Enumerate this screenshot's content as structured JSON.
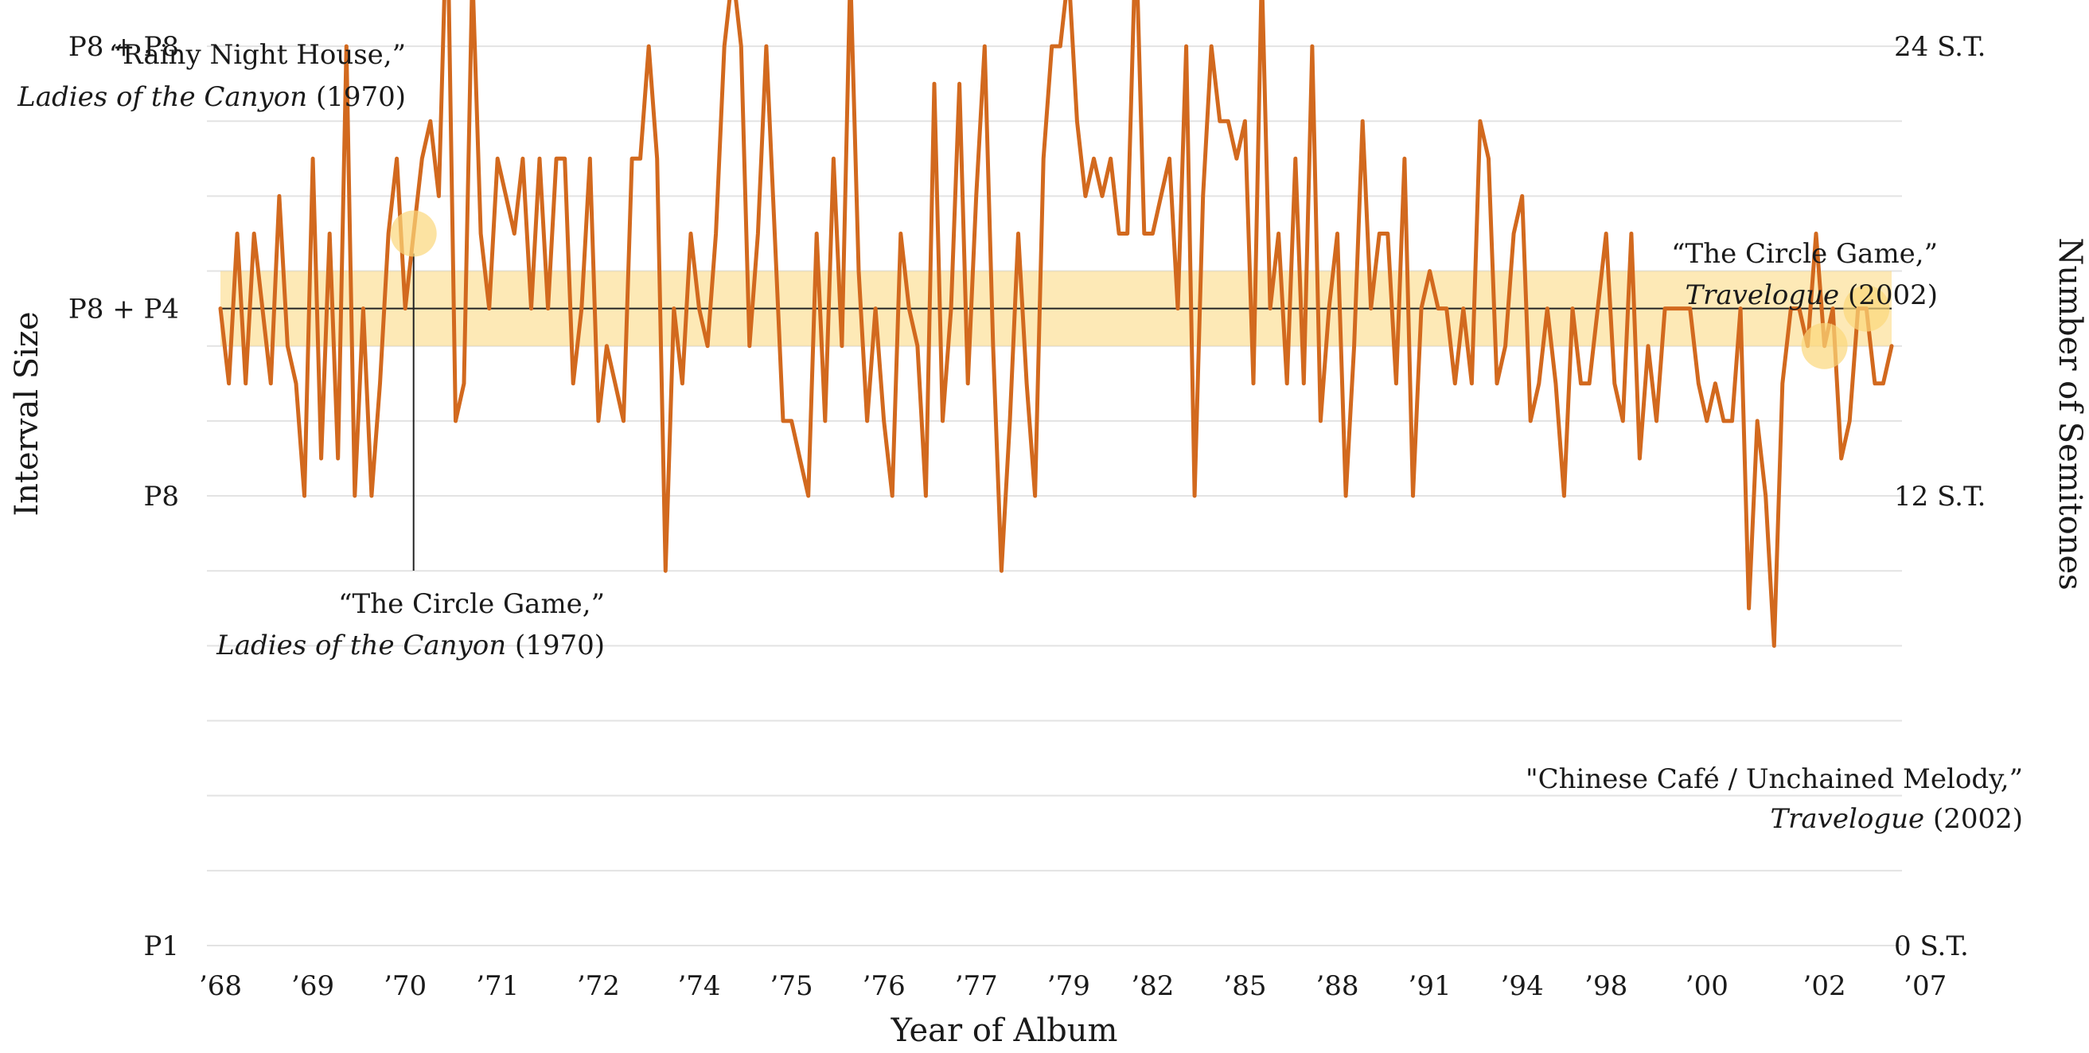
{
  "chart_data": {
    "type": "line",
    "xlabel": "Year of Album",
    "ylabel": "Interval Size",
    "ylabel_right": "Number of Semitones",
    "ylim": [
      0,
      28.5
    ],
    "left_ticks": [
      {
        "value": 0,
        "label": "P1"
      },
      {
        "value": 12,
        "label": "P8"
      },
      {
        "value": 17,
        "label": "P8 + P4"
      },
      {
        "value": 24,
        "label": "P8 + P8"
      }
    ],
    "right_ticks": [
      {
        "value": 0,
        "label": "0 S.T."
      },
      {
        "value": 12,
        "label": "12 S.T."
      },
      {
        "value": 24,
        "label": "24 S.T."
      }
    ],
    "x_ticks": [
      {
        "index": 0,
        "label": "’68"
      },
      {
        "index": 11,
        "label": "’69"
      },
      {
        "index": 22,
        "label": "’70"
      },
      {
        "index": 33,
        "label": "’71"
      },
      {
        "index": 45,
        "label": "’72"
      },
      {
        "index": 57,
        "label": "’74"
      },
      {
        "index": 68,
        "label": "’75"
      },
      {
        "index": 79,
        "label": "’76"
      },
      {
        "index": 90,
        "label": "’77"
      },
      {
        "index": 101,
        "label": "’79"
      },
      {
        "index": 111,
        "label": "’82"
      },
      {
        "index": 122,
        "label": "’85"
      },
      {
        "index": 133,
        "label": "’88"
      },
      {
        "index": 144,
        "label": "’91"
      },
      {
        "index": 155,
        "label": "’94"
      },
      {
        "index": 165,
        "label": "’98"
      },
      {
        "index": 177,
        "label": "’00"
      },
      {
        "index": 191,
        "label": "’02"
      },
      {
        "index": 203,
        "label": "’07"
      }
    ],
    "reference_line": 17,
    "reference_band": [
      16,
      18
    ],
    "grid": true,
    "series": [
      {
        "color": "#d2691e",
        "values": [
          17,
          15,
          19,
          15,
          19,
          17,
          15,
          20,
          16,
          15,
          12,
          21,
          13,
          19,
          13,
          24,
          12,
          17,
          12,
          15,
          19,
          21,
          17,
          19,
          21,
          22,
          20,
          28,
          14,
          15,
          26,
          19,
          17,
          21,
          20,
          19,
          21,
          17,
          21,
          17,
          21,
          21,
          15,
          17,
          21,
          14,
          16,
          15,
          14,
          21,
          21,
          24,
          21,
          10,
          17,
          15,
          19,
          17,
          16,
          19,
          24,
          26,
          24,
          16,
          19,
          24,
          19,
          14,
          14,
          13,
          12,
          19,
          14,
          21,
          16,
          26,
          18,
          14,
          17,
          14,
          12,
          19,
          17,
          16,
          12,
          23,
          14,
          17,
          23,
          15,
          20,
          24,
          16,
          10,
          14,
          19,
          15,
          12,
          21,
          24,
          24,
          26,
          22,
          20,
          21,
          20,
          21,
          19,
          19,
          27,
          19,
          19,
          20,
          21,
          17,
          24,
          12,
          20,
          24,
          22,
          22,
          21,
          22,
          15,
          26,
          17,
          19,
          15,
          21,
          15,
          24,
          14,
          17,
          19,
          12,
          16,
          22,
          17,
          19,
          19,
          15,
          21,
          12,
          17,
          18,
          17,
          17,
          15,
          17,
          15,
          22,
          21,
          15,
          16,
          19,
          20,
          14,
          15,
          17,
          15,
          12,
          17,
          15,
          15,
          17,
          19,
          15,
          14,
          19,
          13,
          16,
          14,
          17,
          17,
          17,
          17,
          15,
          14,
          15,
          14,
          14,
          17,
          9,
          14,
          12,
          8,
          15,
          17,
          17,
          16,
          19,
          16,
          17,
          13,
          14,
          17,
          17,
          15,
          15,
          16
        ]
      }
    ],
    "annotations": [
      {
        "index": 27,
        "title": "“Rainy Night House,”",
        "album": "Ladies of the Canyon",
        "year": "(1970)"
      },
      {
        "index": 23,
        "title": "“The Circle Game,”",
        "album": "Ladies of the Canyon",
        "year": "(1970)"
      },
      {
        "index": 196,
        "title": "“The Circle Game,”",
        "album": "Travelogue",
        "year": "(2002)"
      },
      {
        "index": 191,
        "title": "\"Chinese Café / Unchained Melody,”",
        "album": "Travelogue",
        "year": "(2002)"
      }
    ]
  }
}
